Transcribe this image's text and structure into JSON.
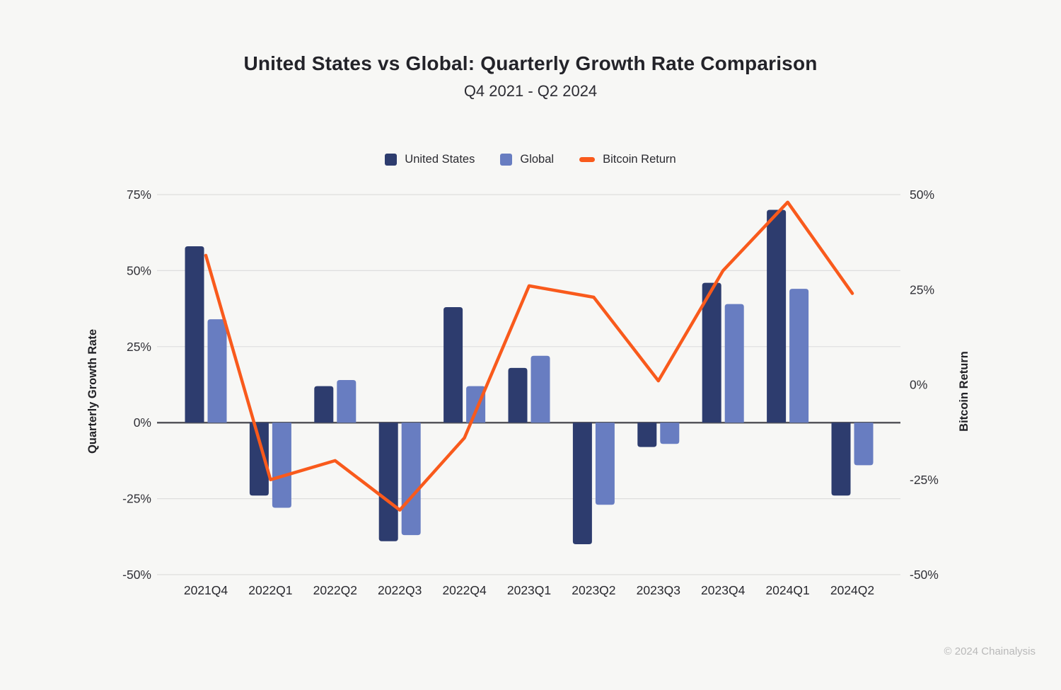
{
  "title": "United States vs Global: Quarterly Growth Rate Comparison",
  "subtitle": "Q4 2021 - Q2 2024",
  "legend": {
    "items": [
      {
        "label": "United States",
        "color": "#2d3c6e",
        "type": "square"
      },
      {
        "label": "Global",
        "color": "#687dc1",
        "type": "square"
      },
      {
        "label": "Bitcoin Return",
        "color": "#f95a1c",
        "type": "line"
      }
    ]
  },
  "footer": {
    "copyright": "© 2024 Chainalysis"
  },
  "chart_data": {
    "type": "bar",
    "categories": [
      "2021Q4",
      "2022Q1",
      "2022Q2",
      "2022Q3",
      "2022Q4",
      "2023Q1",
      "2023Q2",
      "2023Q3",
      "2023Q4",
      "2024Q1",
      "2024Q2"
    ],
    "series": [
      {
        "name": "United States",
        "type": "bar",
        "axis": "left",
        "color": "#2d3c6e",
        "values": [
          58,
          -24,
          12,
          -39,
          38,
          18,
          -40,
          -8,
          46,
          70,
          -24
        ]
      },
      {
        "name": "Global",
        "type": "bar",
        "axis": "left",
        "color": "#687dc1",
        "values": [
          34,
          -28,
          14,
          -37,
          12,
          22,
          -27,
          -7,
          39,
          44,
          -14
        ]
      },
      {
        "name": "Bitcoin Return",
        "type": "line",
        "axis": "right",
        "color": "#f95a1c",
        "values": [
          34,
          -25,
          -20,
          -33,
          -14,
          26,
          23,
          1,
          30,
          48,
          24
        ]
      }
    ],
    "left_axis": {
      "label": "Quarterly Growth Rate",
      "range": [
        -50,
        75
      ],
      "ticks": [
        {
          "value": 75,
          "label": "75%"
        },
        {
          "value": 50,
          "label": "50%"
        },
        {
          "value": 25,
          "label": "25%"
        },
        {
          "value": 0,
          "label": "0%"
        },
        {
          "value": -25,
          "label": "-25%"
        },
        {
          "value": -50,
          "label": "-50%"
        }
      ]
    },
    "right_axis": {
      "label": "Bitcoin Return",
      "range": [
        -50,
        50
      ],
      "ticks": [
        {
          "value": 50,
          "label": "50%"
        },
        {
          "value": 25,
          "label": "25%"
        },
        {
          "value": 0,
          "label": "0%"
        },
        {
          "value": -25,
          "label": "-25%"
        },
        {
          "value": -50,
          "label": "-50%"
        }
      ]
    },
    "grid": true,
    "legend_position": "top"
  },
  "colors": {
    "background": "#f7f7f5",
    "grid": "#dedede",
    "zero_line": "#56565c",
    "tick_text": "#323238",
    "x_label_text": "#29292f",
    "axis_title_text": "#222226"
  }
}
